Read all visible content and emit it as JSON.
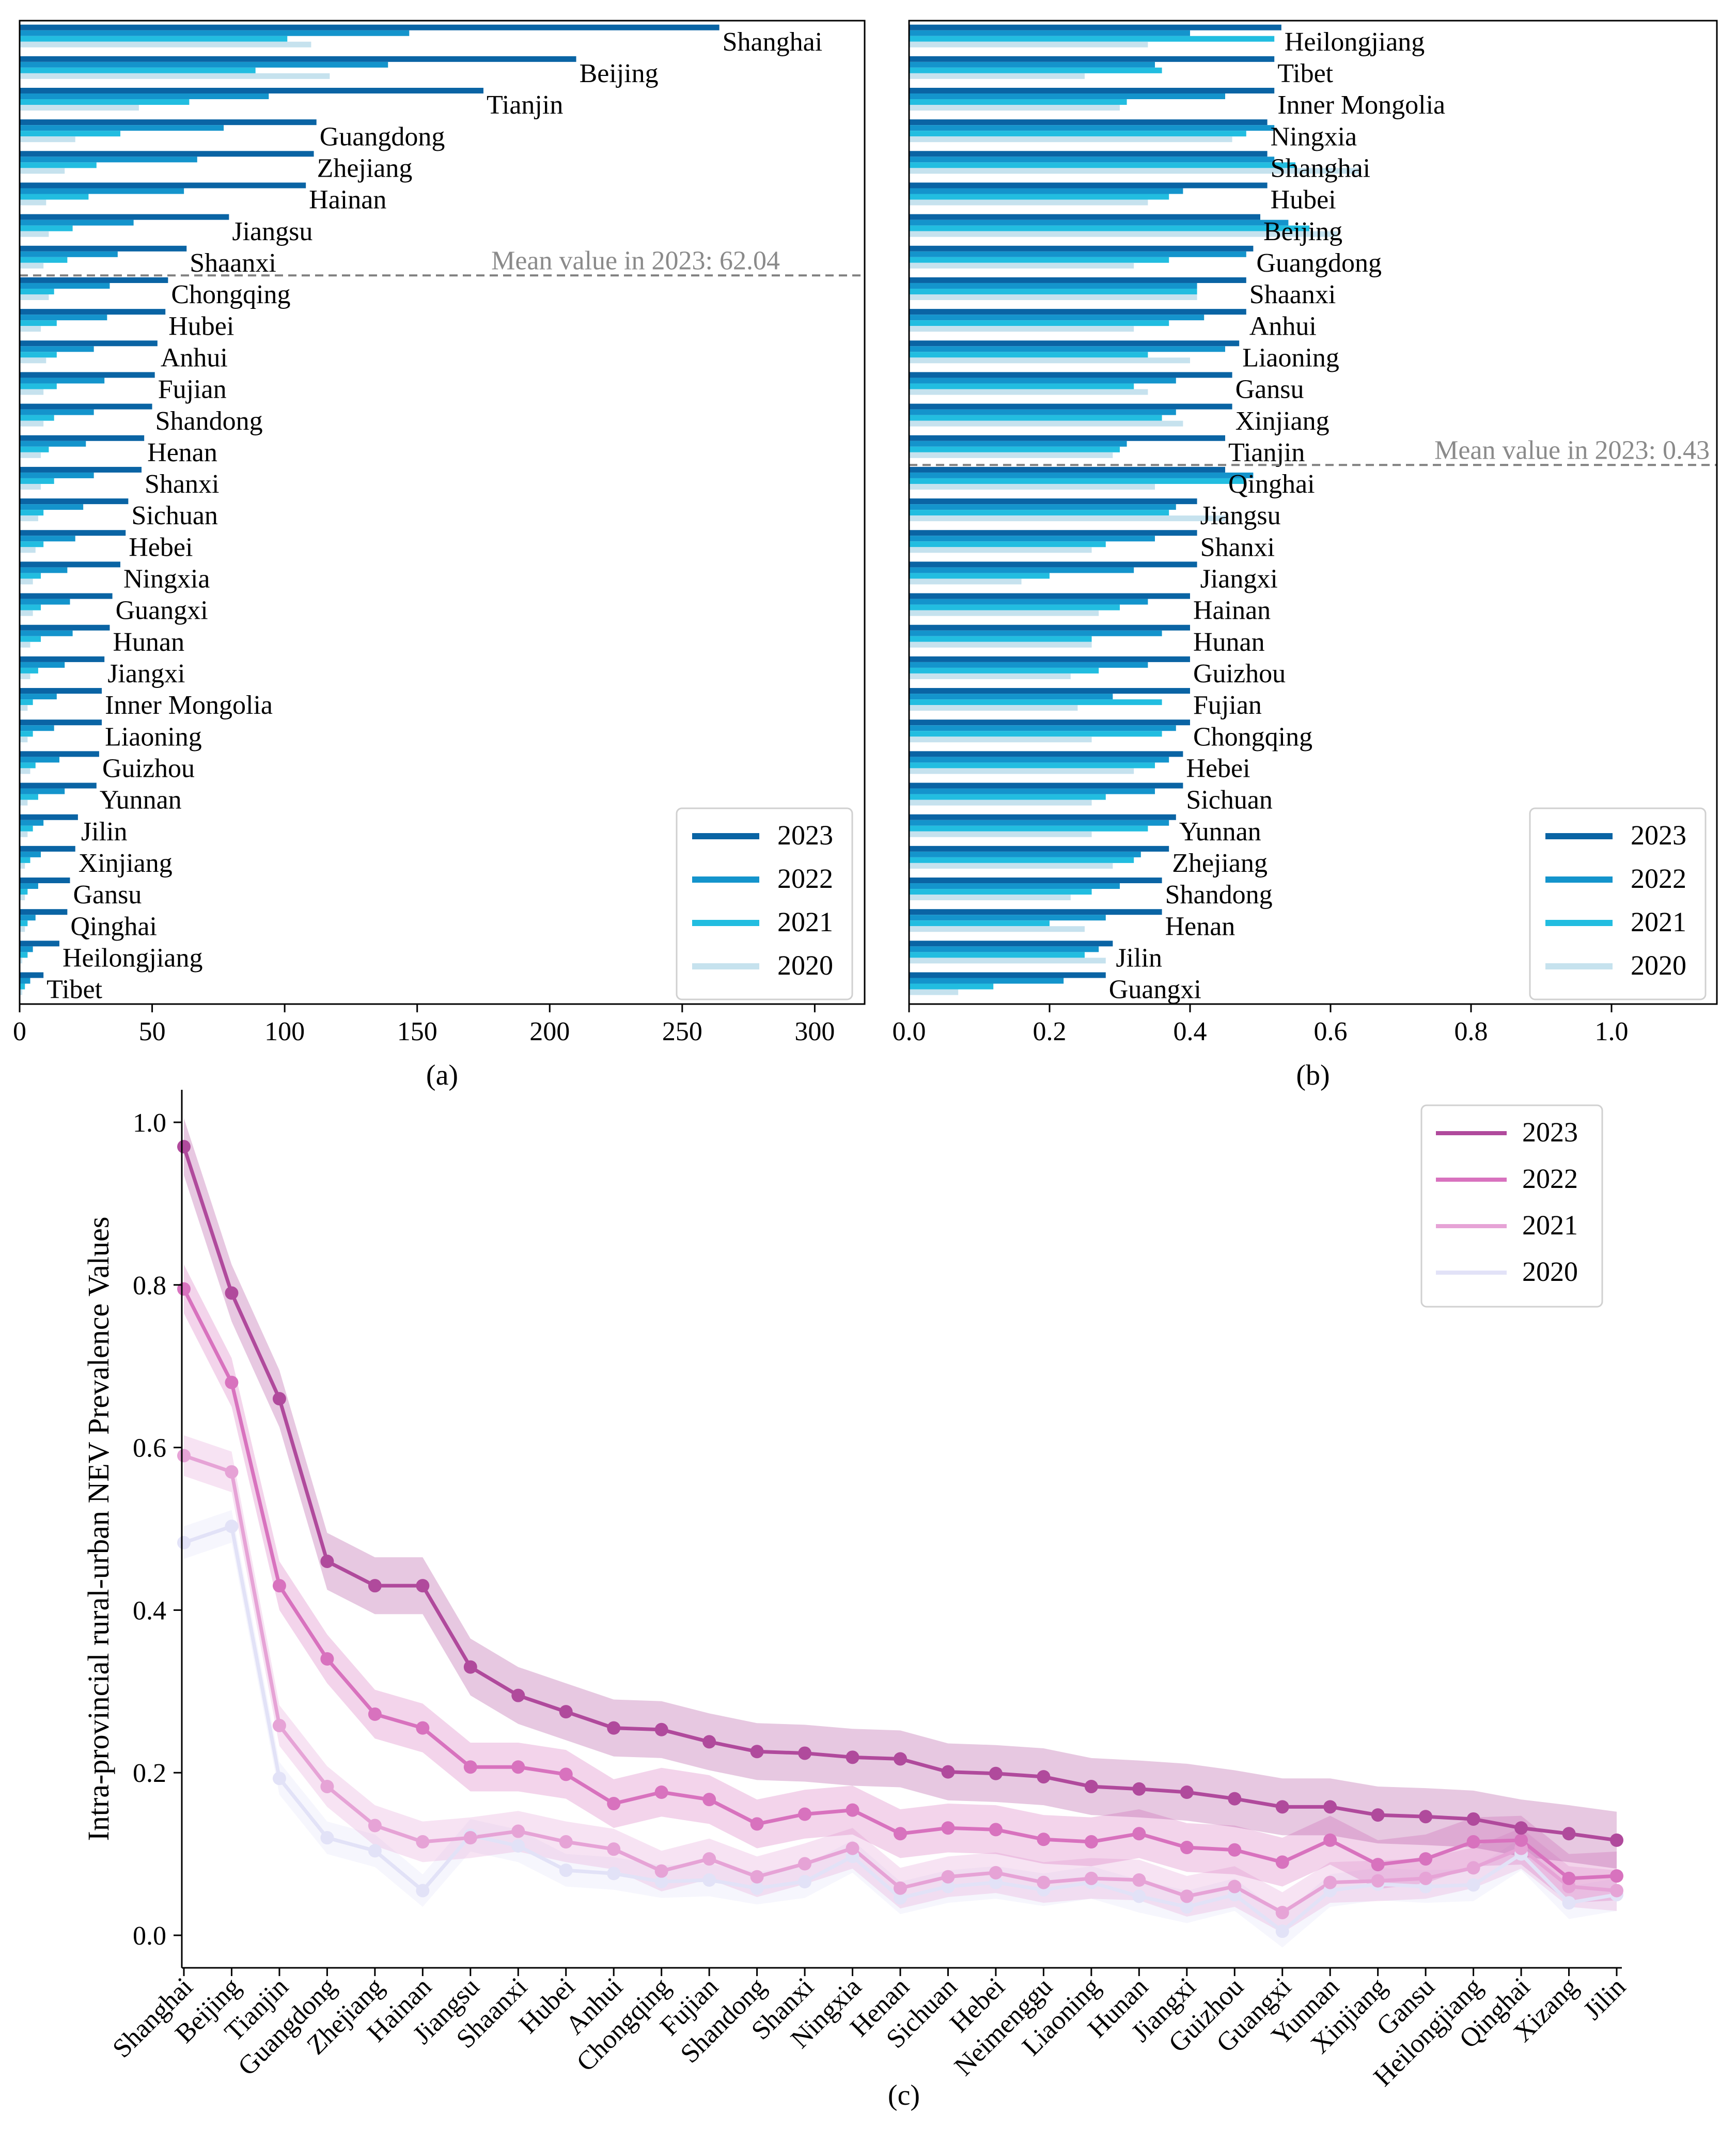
{
  "panel_a": {
    "label": "(a)",
    "mean_label": "Mean value in 2023: 62.04",
    "legend": [
      "2023",
      "2022",
      "2021",
      "2020"
    ]
  },
  "panel_b": {
    "label": "(b)",
    "mean_label": "Mean value in 2023: 0.43",
    "legend": [
      "2023",
      "2022",
      "2021",
      "2020"
    ]
  },
  "panel_c": {
    "label": "(c)",
    "legend": [
      "2023",
      "2022",
      "2021",
      "2020"
    ]
  },
  "colors": {
    "bar_2023": "#0a64a4",
    "bar_2022": "#1494cc",
    "bar_2021": "#22bde0",
    "bar_2020": "#c6e2ee",
    "line_2023": "#b04a9c",
    "line_2022": "#d872be",
    "line_2021": "#e6a3d6",
    "line_2020": "#e2e2f7"
  },
  "chart_data": [
    {
      "type": "bar",
      "orientation": "horizontal",
      "categories": [
        "Shanghai",
        "Beijing",
        "Tianjin",
        "Guangdong",
        "Zhejiang",
        "Hainan",
        "Jiangsu",
        "Shaanxi",
        "Chongqing",
        "Hubei",
        "Anhui",
        "Fujian",
        "Shandong",
        "Henan",
        "Shanxi",
        "Sichuan",
        "Hebei",
        "Ningxia",
        "Guangxi",
        "Hunan",
        "Jiangxi",
        "Inner Mongolia",
        "Liaoning",
        "Guizhou",
        "Yunnan",
        "Jilin",
        "Xinjiang",
        "Gansu",
        "Qinghai",
        "Heilongjiang",
        "Tibet"
      ],
      "series": [
        {
          "name": "2023",
          "values": [
            264,
            210,
            175,
            112,
            111,
            108,
            79,
            63,
            56,
            55,
            52,
            51,
            50,
            47,
            46,
            41,
            40,
            38,
            35,
            34,
            32,
            31,
            31,
            30,
            29,
            22,
            21,
            19,
            18,
            15,
            9
          ]
        },
        {
          "name": "2022",
          "values": [
            147,
            139,
            94,
            77,
            67,
            62,
            43,
            37,
            34,
            33,
            28,
            32,
            28,
            25,
            28,
            24,
            21,
            18,
            19,
            20,
            17,
            14,
            13,
            15,
            17,
            9,
            8,
            7,
            6,
            5,
            4
          ]
        },
        {
          "name": "2021",
          "values": [
            101,
            89,
            64,
            38,
            29,
            26,
            20,
            18,
            13,
            14,
            14,
            14,
            13,
            11,
            13,
            9,
            9,
            8,
            8,
            8,
            7,
            5,
            5,
            6,
            7,
            5,
            4,
            3,
            3,
            3,
            2
          ]
        },
        {
          "name": "2020",
          "values": [
            110,
            117,
            45,
            21,
            17,
            10,
            11,
            9,
            11,
            8,
            10,
            9,
            9,
            8,
            8,
            7,
            6,
            5,
            5,
            4,
            4,
            3,
            3,
            4,
            3,
            3,
            2,
            2,
            2,
            1,
            1
          ]
        }
      ],
      "xlim": [
        0,
        320
      ],
      "xticks": [
        0,
        50,
        100,
        150,
        200,
        250,
        300
      ],
      "mean_line": 62.04
    },
    {
      "type": "bar",
      "orientation": "horizontal",
      "categories": [
        "Heilongjiang",
        "Tibet",
        "Inner Mongolia",
        "Ningxia",
        "Shanghai",
        "Hubei",
        "Beijing",
        "Guangdong",
        "Shaanxi",
        "Anhui",
        "Liaoning",
        "Gansu",
        "Xinjiang",
        "Tianjin",
        "Qinghai",
        "Jiangsu",
        "Shanxi",
        "Jiangxi",
        "Hainan",
        "Hunan",
        "Guizhou",
        "Fujian",
        "Chongqing",
        "Hebei",
        "Sichuan",
        "Yunnan",
        "Zhejiang",
        "Shandong",
        "Henan",
        "Jilin",
        "Guangxi"
      ],
      "series": [
        {
          "name": "2023",
          "values": [
            0.53,
            0.52,
            0.52,
            0.51,
            0.51,
            0.51,
            0.5,
            0.49,
            0.48,
            0.48,
            0.47,
            0.46,
            0.46,
            0.45,
            0.45,
            0.41,
            0.41,
            0.41,
            0.4,
            0.4,
            0.4,
            0.4,
            0.4,
            0.39,
            0.39,
            0.38,
            0.37,
            0.36,
            0.36,
            0.29,
            0.28
          ]
        },
        {
          "name": "2022",
          "values": [
            0.4,
            0.35,
            0.45,
            0.52,
            0.52,
            0.39,
            0.54,
            0.48,
            0.41,
            0.42,
            0.45,
            0.38,
            0.38,
            0.31,
            0.49,
            0.38,
            0.35,
            0.32,
            0.34,
            0.36,
            0.34,
            0.29,
            0.38,
            0.37,
            0.35,
            0.37,
            0.33,
            0.3,
            0.28,
            0.27,
            0.22
          ]
        },
        {
          "name": "2021",
          "values": [
            0.52,
            0.36,
            0.31,
            0.48,
            0.55,
            0.37,
            0.57,
            0.37,
            0.41,
            0.37,
            0.34,
            0.32,
            0.36,
            0.3,
            0.48,
            0.37,
            0.28,
            0.2,
            0.3,
            0.26,
            0.27,
            0.36,
            0.36,
            0.35,
            0.28,
            0.34,
            0.32,
            0.26,
            0.2,
            0.25,
            0.12
          ]
        },
        {
          "name": "2020",
          "values": [
            0.34,
            0.25,
            0.3,
            0.46,
            0.64,
            0.34,
            0.61,
            0.32,
            0.41,
            0.32,
            0.4,
            0.34,
            0.39,
            0.29,
            0.35,
            0.45,
            0.26,
            0.16,
            0.27,
            0.26,
            0.23,
            0.24,
            0.26,
            0.32,
            0.26,
            0.26,
            0.29,
            0.23,
            0.25,
            0.28,
            0.07
          ]
        }
      ],
      "xlim": [
        0,
        1.15
      ],
      "xticks": [
        0.0,
        0.2,
        0.4,
        0.6,
        0.8,
        1.0
      ],
      "xtick_labels": [
        "0.0",
        "0.2",
        "0.4",
        "0.6",
        "0.8",
        "1.0"
      ],
      "mean_line": 0.43
    },
    {
      "type": "line",
      "categories": [
        "Shanghai",
        "Beijing",
        "Tianjin",
        "Guangdong",
        "Zhejiang",
        "Hainan",
        "Jiangsu",
        "Shaanxi",
        "Hubei",
        "Anhui",
        "Chongqing",
        "Fujian",
        "Shandong",
        "Shanxi",
        "Ningxia",
        "Henan",
        "Sichuan",
        "Hebei",
        "Neimenggu",
        "Liaoning",
        "Hunan",
        "Jiangxi",
        "Guizhou",
        "Guangxi",
        "Yunnan",
        "Xinjiang",
        "Gansu",
        "Heilongjiang",
        "Qinghai",
        "Xizang",
        "Jilin"
      ],
      "ylabel": "Intra-provincial rural-urban NEV Prevalence Values",
      "ylim": [
        -0.04,
        1.04
      ],
      "yticks": [
        0.0,
        0.2,
        0.4,
        0.6,
        0.8,
        1.0
      ],
      "ytick_labels": [
        "0.0",
        "0.2",
        "0.4",
        "0.6",
        "0.8",
        "1.0"
      ],
      "series": [
        {
          "name": "2023",
          "values": [
            0.97,
            0.79,
            0.66,
            0.46,
            0.43,
            0.43,
            0.33,
            0.295,
            0.275,
            0.255,
            0.253,
            0.238,
            0.226,
            0.224,
            0.219,
            0.217,
            0.201,
            0.199,
            0.195,
            0.183,
            0.18,
            0.176,
            0.168,
            0.158,
            0.158,
            0.148,
            0.146,
            0.143,
            0.132,
            0.125,
            0.117
          ],
          "band": 0.035
        },
        {
          "name": "2022",
          "values": [
            0.795,
            0.68,
            0.43,
            0.34,
            0.272,
            0.255,
            0.207,
            0.207,
            0.198,
            0.162,
            0.176,
            0.167,
            0.137,
            0.149,
            0.154,
            0.125,
            0.132,
            0.13,
            0.118,
            0.115,
            0.125,
            0.108,
            0.105,
            0.09,
            0.117,
            0.087,
            0.094,
            0.115,
            0.117,
            0.07,
            0.073
          ],
          "band": 0.03
        },
        {
          "name": "2021",
          "values": [
            0.59,
            0.57,
            0.258,
            0.183,
            0.135,
            0.115,
            0.12,
            0.128,
            0.115,
            0.106,
            0.079,
            0.094,
            0.072,
            0.088,
            0.107,
            0.058,
            0.072,
            0.077,
            0.065,
            0.07,
            0.068,
            0.048,
            0.06,
            0.028,
            0.065,
            0.067,
            0.07,
            0.083,
            0.107,
            0.06,
            0.055
          ],
          "band": 0.025
        },
        {
          "name": "2020",
          "values": [
            0.483,
            0.503,
            0.193,
            0.12,
            0.104,
            0.055,
            0.123,
            0.11,
            0.08,
            0.076,
            0.066,
            0.068,
            0.058,
            0.066,
            0.097,
            0.046,
            0.06,
            0.065,
            0.056,
            0.065,
            0.048,
            0.035,
            0.05,
            0.005,
            0.055,
            0.063,
            0.06,
            0.062,
            0.1,
            0.04,
            0.05
          ],
          "band": 0.02
        }
      ]
    }
  ]
}
